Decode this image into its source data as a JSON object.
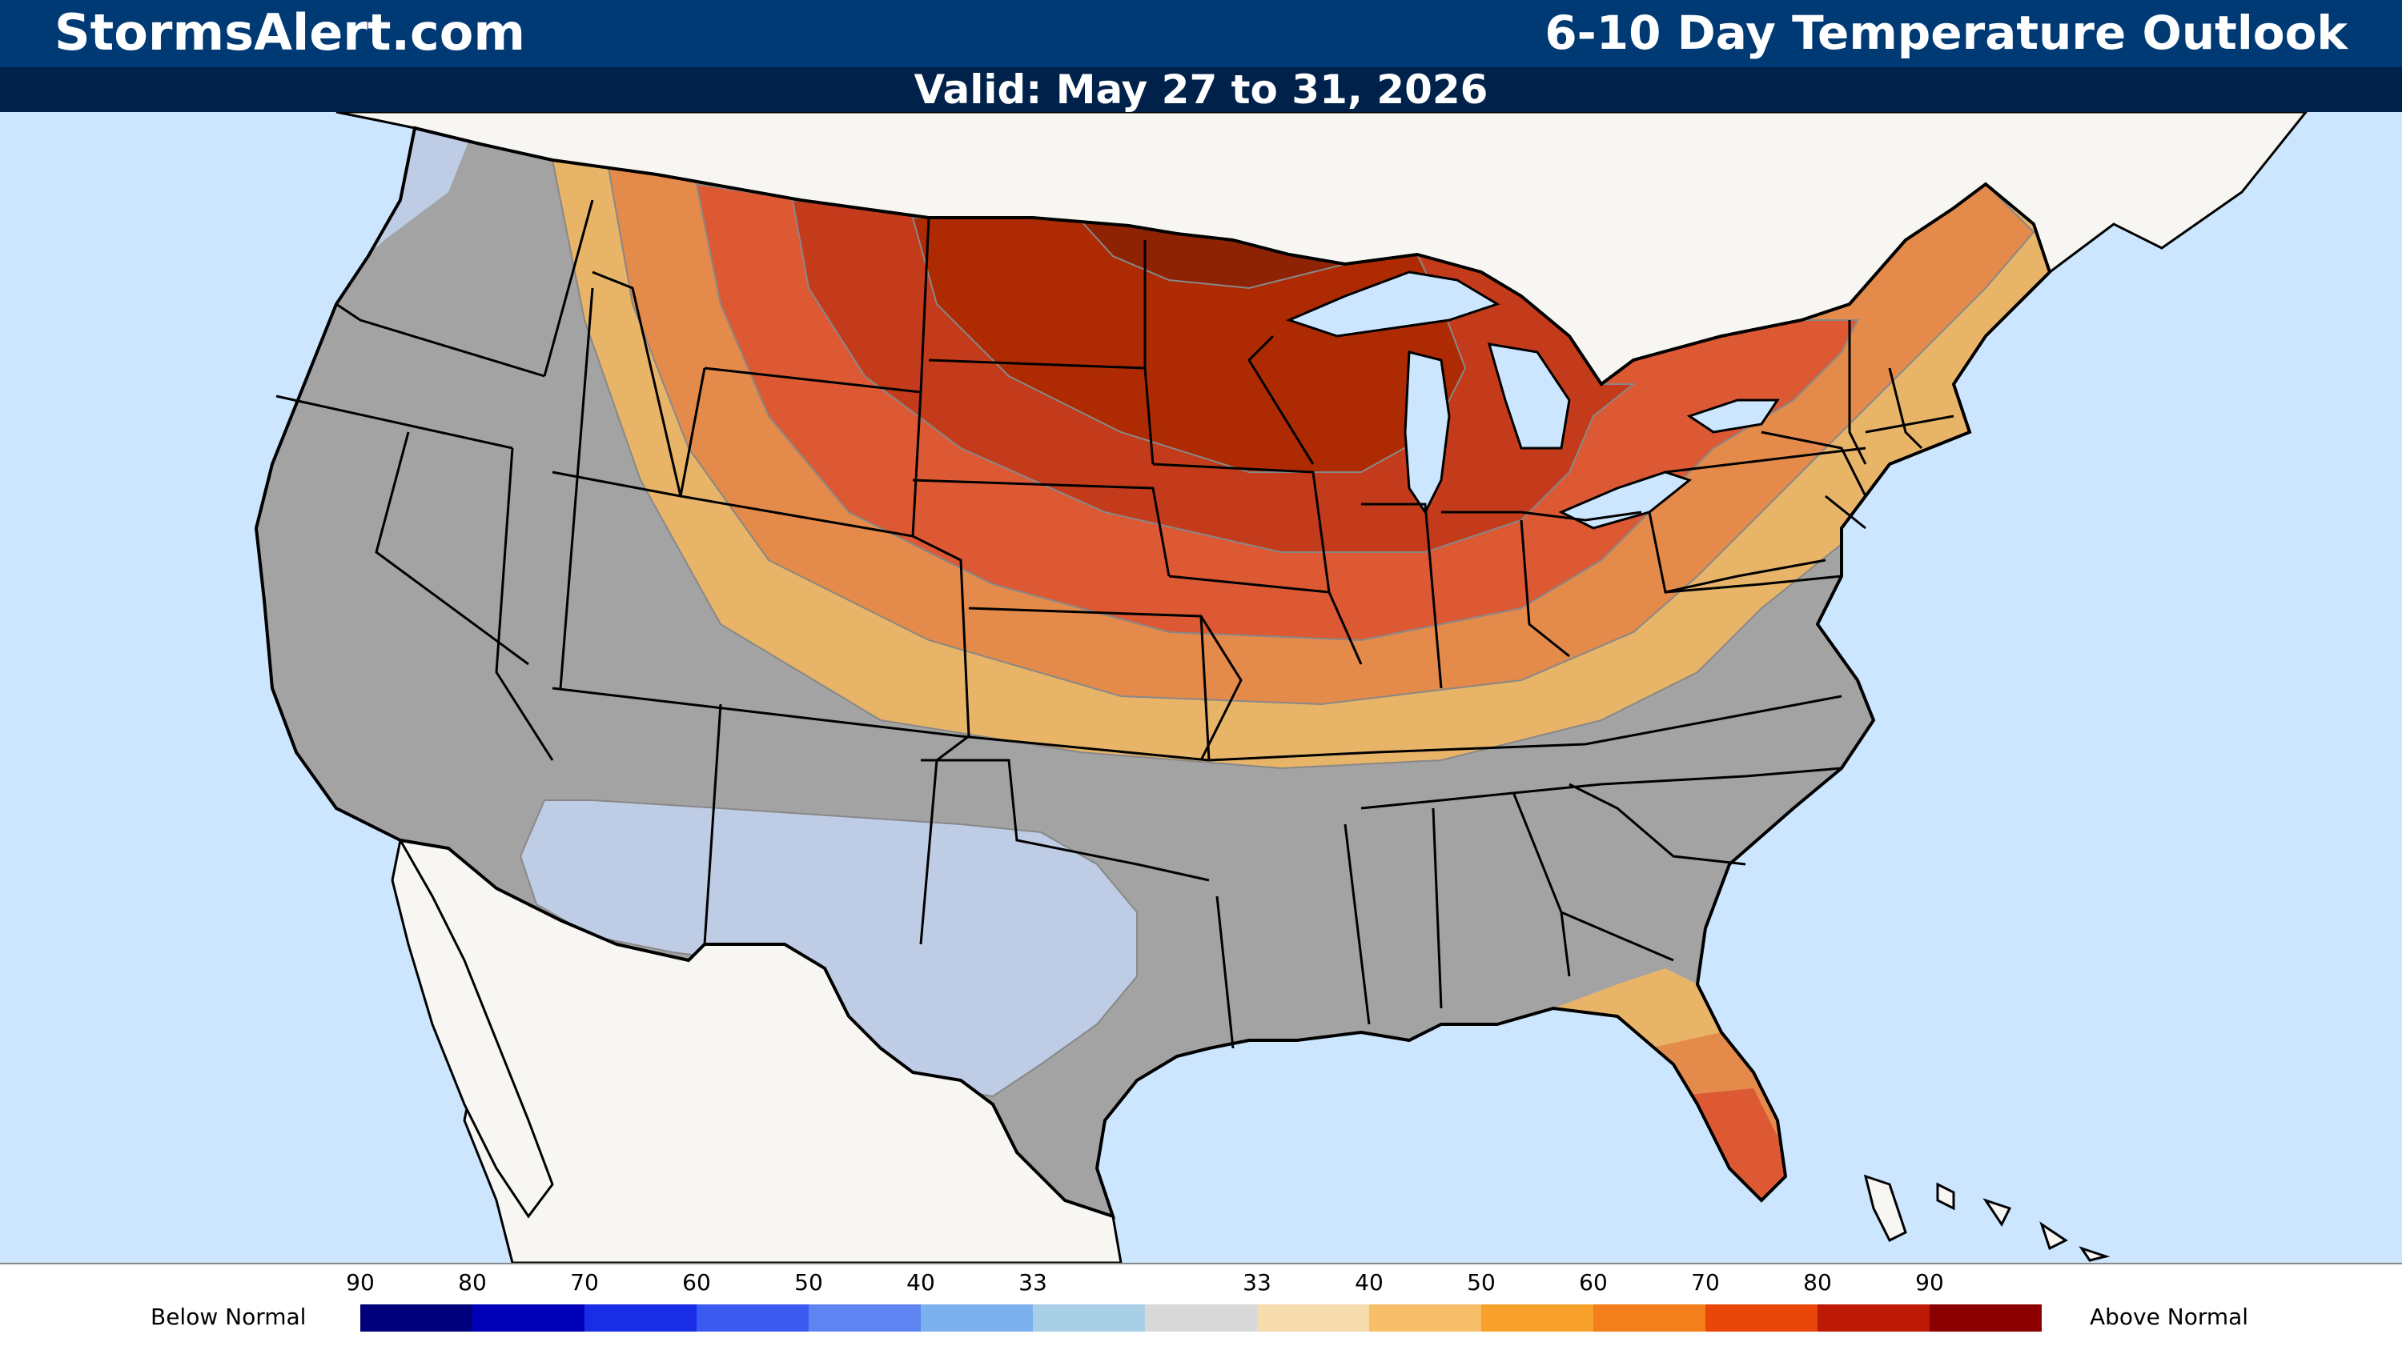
{
  "header": {
    "site": "StormsAlert.com",
    "product": "6-10 Day Temperature Outlook",
    "valid": "Valid: May 27 to 31, 2026"
  },
  "legend": {
    "below_label": "Below Normal",
    "above_label": "Above Normal",
    "below_ticks": [
      "90",
      "80",
      "70",
      "60",
      "50",
      "40",
      "33"
    ],
    "above_ticks": [
      "33",
      "40",
      "50",
      "60",
      "70",
      "80",
      "90"
    ],
    "below_colors": [
      "#00007a",
      "#0000b8",
      "#1a2de6",
      "#3b5bf0",
      "#5e84f2",
      "#7db0ee",
      "#a8cfe6"
    ],
    "neutral_color": "#d8d8d8",
    "above_colors": [
      "#f6dcac",
      "#f7be6a",
      "#f7a12a",
      "#f27f1a",
      "#e9460a",
      "#bd1a06",
      "#8b0000"
    ]
  },
  "map": {
    "land_color": "#f7f6f2",
    "water_color": "#cce6ff",
    "normal_color": "#a3a3a3",
    "regions": [
      {
        "name": "pacific-northwest",
        "category": "below",
        "probability": "33-40",
        "color": "#bfcce6"
      },
      {
        "name": "southwest",
        "category": "below",
        "probability": "33-40",
        "color": "#bfcce6"
      },
      {
        "name": "west-and-south",
        "category": "near-normal",
        "color": "#a3a3a3"
      },
      {
        "name": "plains-to-northeast",
        "category": "above",
        "probability": "33-40",
        "color": "#e8b468"
      },
      {
        "name": "central-rockies-to-mid-atlantic",
        "category": "above",
        "probability": "40-50",
        "color": "#e48a4a"
      },
      {
        "name": "northern-plains-to-great-lakes",
        "category": "above",
        "probability": "50-60",
        "color": "#dc5934"
      },
      {
        "name": "upper-midwest",
        "category": "above",
        "probability": "60-70",
        "color": "#c43b1c"
      },
      {
        "name": "dakotas-minnesota-wisconsin",
        "category": "above",
        "probability": "70-80",
        "color": "#ad2a02"
      },
      {
        "name": "northern-minnesota",
        "category": "above",
        "probability": "80-90",
        "color": "#8e2304"
      },
      {
        "name": "florida-gulf",
        "category": "above",
        "probability": "33-60",
        "color": "#dc5934"
      }
    ]
  }
}
